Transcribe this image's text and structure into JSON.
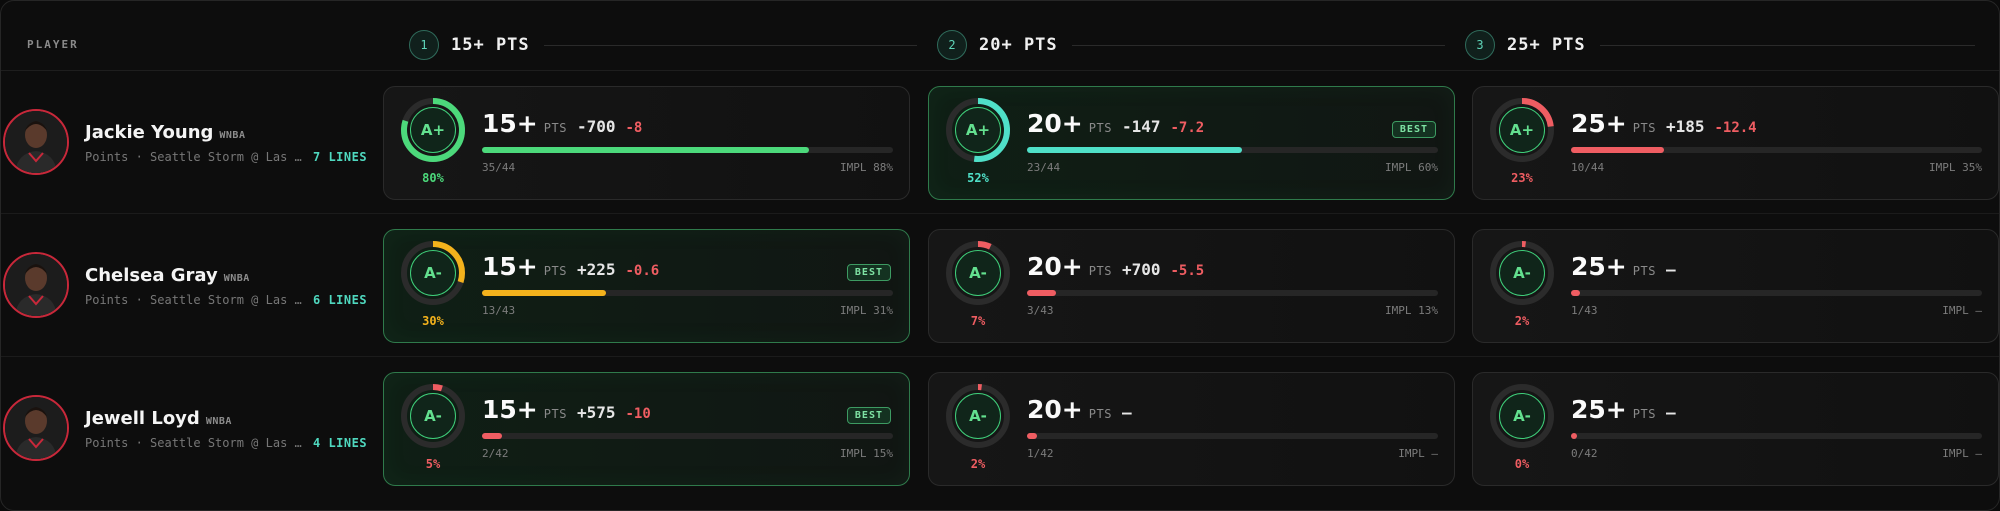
{
  "header": {
    "player_label": "PLAYER",
    "columns": [
      {
        "number": "1",
        "title": "15+ PTS"
      },
      {
        "number": "2",
        "title": "20+ PTS"
      },
      {
        "number": "3",
        "title": "25+ PTS"
      }
    ]
  },
  "colors": {
    "green": "#4cd97b",
    "teal": "#4fe0c8",
    "amber": "#f3b21c",
    "red": "#ef5d62",
    "best_border": "#2f7a4b"
  },
  "players": [
    {
      "name": "Jackie Young",
      "league": "WNBA",
      "meta": "Points · Seattle Storm @ Las …",
      "lines": "7 LINES",
      "cards": [
        {
          "line": "15+",
          "unit": "PTS",
          "odds": "-700",
          "edge": "-8",
          "best": false,
          "badge": "",
          "grade": "A+",
          "pct": "80%",
          "pct_value": 0.8,
          "color": "#4cd97b",
          "hits": "35/44",
          "hit_rate": 0.795,
          "impl": "IMPL 88%"
        },
        {
          "line": "20+",
          "unit": "PTS",
          "odds": "-147",
          "edge": "-7.2",
          "best": true,
          "badge": "BEST",
          "grade": "A+",
          "pct": "52%",
          "pct_value": 0.52,
          "color": "#4fe0c8",
          "hits": "23/44",
          "hit_rate": 0.523,
          "impl": "IMPL 60%"
        },
        {
          "line": "25+",
          "unit": "PTS",
          "odds": "+185",
          "edge": "-12.4",
          "best": false,
          "badge": "",
          "grade": "A+",
          "pct": "23%",
          "pct_value": 0.23,
          "color": "#ef5d62",
          "hits": "10/44",
          "hit_rate": 0.227,
          "impl": "IMPL 35%"
        }
      ]
    },
    {
      "name": "Chelsea Gray",
      "league": "WNBA",
      "meta": "Points · Seattle Storm @ Las …",
      "lines": "6 LINES",
      "cards": [
        {
          "line": "15+",
          "unit": "PTS",
          "odds": "+225",
          "edge": "-0.6",
          "best": true,
          "badge": "BEST",
          "grade": "A-",
          "pct": "30%",
          "pct_value": 0.3,
          "color": "#f3b21c",
          "hits": "13/43",
          "hit_rate": 0.302,
          "impl": "IMPL 31%"
        },
        {
          "line": "20+",
          "unit": "PTS",
          "odds": "+700",
          "edge": "-5.5",
          "best": false,
          "badge": "",
          "grade": "A-",
          "pct": "7%",
          "pct_value": 0.07,
          "color": "#ef5d62",
          "hits": "3/43",
          "hit_rate": 0.07,
          "impl": "IMPL 13%"
        },
        {
          "line": "25+",
          "unit": "PTS",
          "odds": "—",
          "edge": "",
          "best": false,
          "badge": "",
          "grade": "A-",
          "pct": "2%",
          "pct_value": 0.02,
          "color": "#ef5d62",
          "hits": "1/43",
          "hit_rate": 0.023,
          "impl": "IMPL —"
        }
      ]
    },
    {
      "name": "Jewell Loyd",
      "league": "WNBA",
      "meta": "Points · Seattle Storm @ Las …",
      "lines": "4 LINES",
      "cards": [
        {
          "line": "15+",
          "unit": "PTS",
          "odds": "+575",
          "edge": "-10",
          "best": true,
          "badge": "BEST",
          "grade": "A-",
          "pct": "5%",
          "pct_value": 0.05,
          "color": "#ef5d62",
          "hits": "2/42",
          "hit_rate": 0.048,
          "impl": "IMPL 15%"
        },
        {
          "line": "20+",
          "unit": "PTS",
          "odds": "—",
          "edge": "",
          "best": false,
          "badge": "",
          "grade": "A-",
          "pct": "2%",
          "pct_value": 0.02,
          "color": "#ef5d62",
          "hits": "1/42",
          "hit_rate": 0.024,
          "impl": "IMPL —"
        },
        {
          "line": "25+",
          "unit": "PTS",
          "odds": "—",
          "edge": "",
          "best": false,
          "badge": "",
          "grade": "A-",
          "pct": "0%",
          "pct_value": 0.0,
          "color": "#ef5d62",
          "hits": "0/42",
          "hit_rate": 0.0,
          "impl": "IMPL —"
        }
      ]
    }
  ]
}
